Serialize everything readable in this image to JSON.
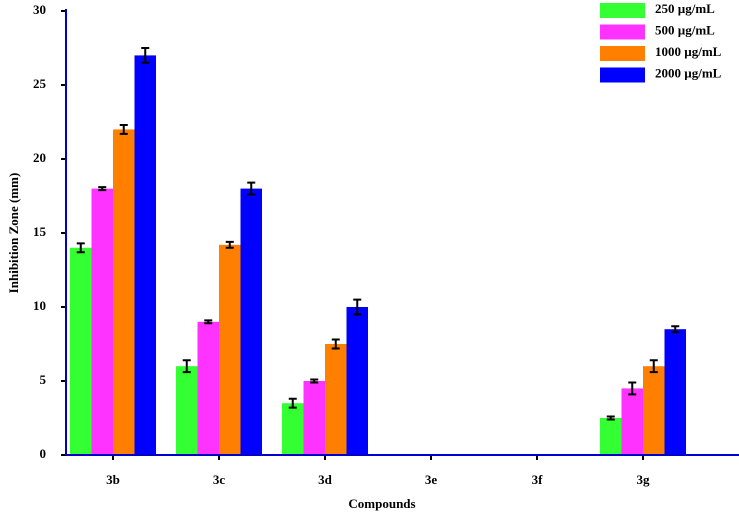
{
  "chart_data": {
    "type": "bar",
    "xlabel": "Compounds",
    "ylabel": "Inhibition Zone (mm)",
    "categories": [
      "3b",
      "3c",
      "3d",
      "3e",
      "3f",
      "3g"
    ],
    "series": [
      {
        "name": "250 µg/mL",
        "color": "#33ff33",
        "values": [
          14,
          6,
          3.5,
          0,
          0,
          2.5
        ],
        "errors": [
          0.3,
          0.4,
          0.3,
          0,
          0,
          0.1
        ]
      },
      {
        "name": "500 µg/mL",
        "color": "#ff33ff",
        "values": [
          18,
          9,
          5,
          0,
          0,
          4.5
        ],
        "errors": [
          0.1,
          0.1,
          0.1,
          0,
          0,
          0.4
        ]
      },
      {
        "name": "1000 µg/mL",
        "color": "#ff8000",
        "values": [
          22,
          14.2,
          7.5,
          0,
          0,
          6
        ],
        "errors": [
          0.3,
          0.2,
          0.3,
          0,
          0,
          0.4
        ]
      },
      {
        "name": "2000 µg/mL",
        "color": "#0000ff",
        "values": [
          27,
          18,
          10,
          0,
          0,
          8.5
        ],
        "errors": [
          0.5,
          0.4,
          0.5,
          0,
          0,
          0.2
        ]
      }
    ],
    "ylim": [
      0,
      30
    ],
    "yticks": [
      0,
      5,
      10,
      15,
      20,
      25,
      30
    ],
    "legend": "upper right"
  }
}
